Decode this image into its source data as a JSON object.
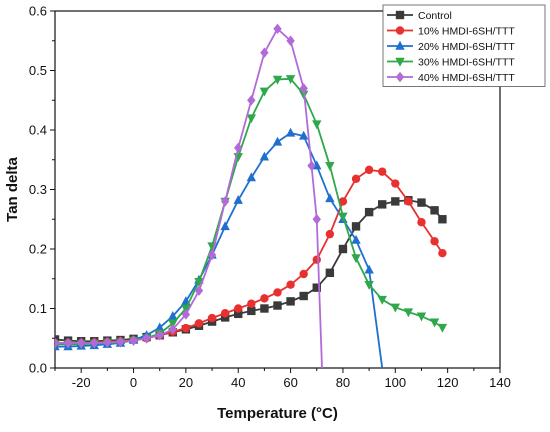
{
  "chart_data": {
    "type": "line",
    "xlabel": "Temperature (°C)",
    "ylabel": "Tan delta",
    "xlim": [
      -30,
      140
    ],
    "ylim": [
      0,
      0.6
    ],
    "xticks": [
      -20,
      0,
      20,
      40,
      60,
      80,
      100,
      120,
      140
    ],
    "yticks": [
      0.0,
      0.1,
      0.2,
      0.3,
      0.4,
      0.5,
      0.6
    ],
    "xtick_labels": [
      "-20",
      "0",
      "20",
      "40",
      "60",
      "80",
      "100",
      "120",
      "140"
    ],
    "ytick_labels": [
      "0.0",
      "0.1",
      "0.2",
      "0.3",
      "0.4",
      "0.5",
      "0.6"
    ],
    "grid": false,
    "legend_position": "top-right",
    "series": [
      {
        "name": "Control",
        "color": "#3a3a3a",
        "marker": "square",
        "x": [
          -30,
          -25,
          -20,
          -15,
          -10,
          -5,
          0,
          5,
          10,
          15,
          20,
          25,
          30,
          35,
          40,
          45,
          50,
          55,
          60,
          65,
          70,
          75,
          80,
          85,
          90,
          95,
          100,
          105,
          110,
          115,
          118
        ],
        "y": [
          0.048,
          0.046,
          0.045,
          0.045,
          0.046,
          0.047,
          0.049,
          0.052,
          0.055,
          0.06,
          0.065,
          0.071,
          0.078,
          0.085,
          0.091,
          0.096,
          0.1,
          0.105,
          0.112,
          0.121,
          0.135,
          0.16,
          0.2,
          0.238,
          0.262,
          0.275,
          0.28,
          0.282,
          0.278,
          0.265,
          0.25
        ]
      },
      {
        "name": "10% HMDI-6SH/TTT",
        "color": "#e8312f",
        "marker": "circle",
        "x": [
          -30,
          -25,
          -20,
          -15,
          -10,
          -5,
          0,
          5,
          10,
          15,
          20,
          25,
          30,
          35,
          40,
          45,
          50,
          55,
          60,
          65,
          70,
          75,
          80,
          85,
          90,
          95,
          100,
          105,
          110,
          115,
          118
        ],
        "y": [
          0.042,
          0.042,
          0.042,
          0.043,
          0.044,
          0.045,
          0.047,
          0.05,
          0.055,
          0.061,
          0.067,
          0.075,
          0.084,
          0.092,
          0.1,
          0.108,
          0.117,
          0.127,
          0.14,
          0.158,
          0.182,
          0.225,
          0.28,
          0.318,
          0.333,
          0.33,
          0.31,
          0.28,
          0.245,
          0.213,
          0.193
        ]
      },
      {
        "name": "20% HMDI-6SH/TTT",
        "color": "#1f6fd1",
        "marker": "triangle-up",
        "x": [
          -30,
          -25,
          -20,
          -15,
          -10,
          -5,
          0,
          5,
          10,
          15,
          20,
          25,
          30,
          35,
          40,
          45,
          50,
          55,
          60,
          65,
          70,
          75,
          80,
          85,
          90,
          95
        ],
        "y": [
          0.036,
          0.036,
          0.037,
          0.038,
          0.04,
          0.042,
          0.047,
          0.055,
          0.068,
          0.087,
          0.112,
          0.148,
          0.19,
          0.238,
          0.282,
          0.32,
          0.355,
          0.38,
          0.395,
          0.39,
          0.34,
          0.285,
          0.25,
          0.215,
          0.165,
          0.0
        ]
      },
      {
        "name": "30% HMDI-6SH/TTT",
        "color": "#2ea84a",
        "marker": "triangle-down",
        "x": [
          -30,
          -25,
          -20,
          -15,
          -10,
          -5,
          0,
          5,
          10,
          15,
          20,
          25,
          30,
          35,
          40,
          45,
          50,
          55,
          60,
          65,
          70,
          75,
          80,
          85,
          90,
          95,
          100,
          105,
          110,
          115,
          118
        ],
        "y": [
          0.04,
          0.04,
          0.04,
          0.041,
          0.042,
          0.043,
          0.046,
          0.05,
          0.058,
          0.075,
          0.1,
          0.145,
          0.205,
          0.28,
          0.355,
          0.42,
          0.465,
          0.485,
          0.486,
          0.46,
          0.41,
          0.34,
          0.255,
          0.185,
          0.14,
          0.115,
          0.102,
          0.094,
          0.087,
          0.077,
          0.068
        ]
      },
      {
        "name": "40% HMDI-6SH/TTT",
        "color": "#b36ad9",
        "marker": "diamond",
        "x": [
          -30,
          -25,
          -20,
          -15,
          -10,
          -5,
          0,
          5,
          10,
          15,
          20,
          25,
          30,
          35,
          40,
          45,
          50,
          55,
          60,
          65,
          68,
          70,
          72
        ],
        "y": [
          0.042,
          0.042,
          0.042,
          0.042,
          0.043,
          0.044,
          0.046,
          0.05,
          0.055,
          0.065,
          0.09,
          0.13,
          0.19,
          0.28,
          0.37,
          0.45,
          0.53,
          0.57,
          0.55,
          0.47,
          0.34,
          0.25,
          0.0
        ]
      }
    ]
  }
}
